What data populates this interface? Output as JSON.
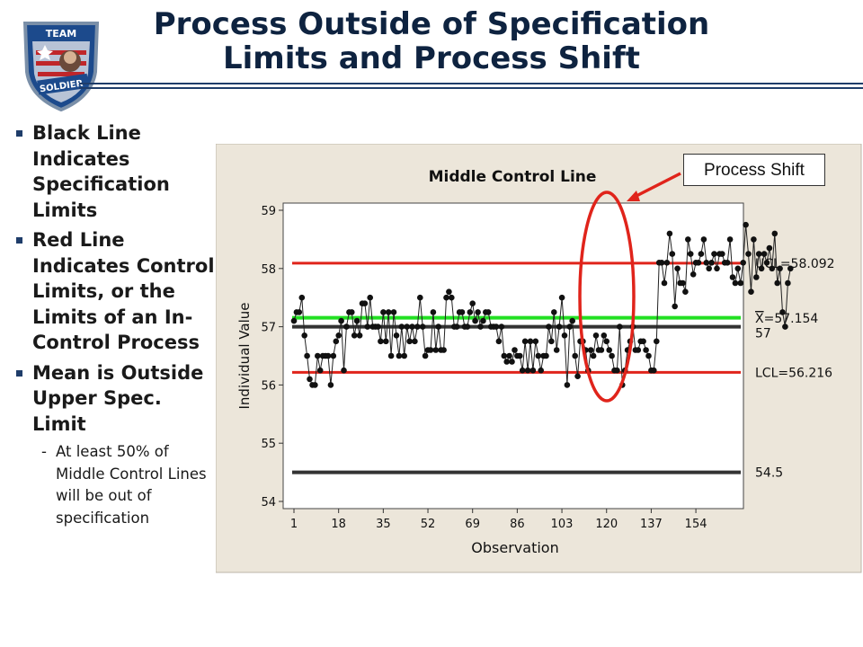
{
  "header": {
    "title_line1": "Process Outside of Specification",
    "title_line2": "Limits and Process Shift",
    "logo_text_top": "TEAM",
    "logo_text_bottom": "SOLDIER"
  },
  "bullets": [
    {
      "text": "Black Line Indicates Specification Limits"
    },
    {
      "text": "Red Line Indicates Control Limits, or the Limits of an In-Control Process"
    },
    {
      "text": "Mean is Outside Upper Spec. Limit"
    }
  ],
  "sub_bullet": "At least 50% of Middle Control Lines will be out of specification",
  "callout": "Process Shift",
  "colors": {
    "title": "#0e2340",
    "chart_bg": "#ece6da",
    "control_limit": "#e0241b",
    "spec_limit": "#333333",
    "mean": "#22e022",
    "highlight": "#e0241b"
  },
  "chart_data": {
    "type": "line",
    "title": "Middle Control Line",
    "xlabel": "Observation",
    "ylabel": "Individual Value",
    "xlim": [
      0,
      168
    ],
    "ylim": [
      54,
      59
    ],
    "x_ticks": [
      1,
      18,
      35,
      52,
      69,
      86,
      103,
      120,
      137,
      154
    ],
    "y_ticks": [
      54,
      55,
      56,
      57,
      58,
      59
    ],
    "reference_lines": [
      {
        "label": "UCL=58.092",
        "value": 58.092,
        "kind": "control"
      },
      {
        "label": "LCL=56.216",
        "value": 56.216,
        "kind": "control"
      },
      {
        "label": "57",
        "value": 57.0,
        "kind": "spec"
      },
      {
        "label": "54.5",
        "value": 54.5,
        "kind": "spec"
      }
    ],
    "mean_line": {
      "label_symbol": "X",
      "label_value": "=57.154",
      "value": 57.154
    },
    "values": [
      57.1,
      57.25,
      57.25,
      57.5,
      56.85,
      56.5,
      56.1,
      56.0,
      56.0,
      56.5,
      56.25,
      56.5,
      56.5,
      56.5,
      56.0,
      56.5,
      56.75,
      56.85,
      57.1,
      56.25,
      57.0,
      57.25,
      57.25,
      56.85,
      57.1,
      56.85,
      57.4,
      57.4,
      57.0,
      57.5,
      57.0,
      57.0,
      57.0,
      56.75,
      57.25,
      56.75,
      57.25,
      56.5,
      57.25,
      56.85,
      56.5,
      57.0,
      56.5,
      57.0,
      56.75,
      57.0,
      56.75,
      57.0,
      57.5,
      57.0,
      56.5,
      56.6,
      56.6,
      57.25,
      56.6,
      57.0,
      56.6,
      56.6,
      57.5,
      57.6,
      57.5,
      57.0,
      57.0,
      57.25,
      57.25,
      57.0,
      57.0,
      57.25,
      57.4,
      57.1,
      57.25,
      57.0,
      57.1,
      57.25,
      57.25,
      57.0,
      57.0,
      57.0,
      56.75,
      57.0,
      56.5,
      56.4,
      56.5,
      56.4,
      56.6,
      56.5,
      56.5,
      56.25,
      56.75,
      56.25,
      56.75,
      56.25,
      56.75,
      56.5,
      56.25,
      56.5,
      56.5,
      57.0,
      56.75,
      57.25,
      56.6,
      57.0,
      57.5,
      56.85,
      56.0,
      57.0,
      57.1,
      56.5,
      56.15,
      56.75,
      56.75,
      56.6,
      56.25,
      56.6,
      56.5,
      56.85,
      56.6,
      56.6,
      56.85,
      56.75,
      56.6,
      56.5,
      56.25,
      56.25,
      57.0,
      56.0,
      56.25,
      56.6,
      56.75,
      57.0,
      56.6,
      56.6,
      56.75,
      56.75,
      56.6,
      56.5,
      56.25,
      56.25,
      56.75,
      58.1,
      58.1,
      57.75,
      58.1,
      58.6,
      58.25,
      57.35,
      58.0,
      57.75,
      57.75,
      57.6,
      58.5,
      58.25,
      57.9,
      58.1,
      58.1,
      58.25,
      58.5,
      58.1,
      58.0,
      58.1,
      58.25,
      58.0,
      58.25,
      58.25,
      58.1,
      58.1,
      58.5,
      57.85,
      57.75,
      58.0,
      57.75,
      58.1,
      58.75,
      58.25,
      57.6,
      58.5,
      57.85,
      58.25,
      58.0,
      58.25,
      58.1,
      58.35,
      58.0,
      58.6,
      57.75,
      58.0,
      57.25,
      57.0,
      57.75,
      58.0
    ]
  }
}
